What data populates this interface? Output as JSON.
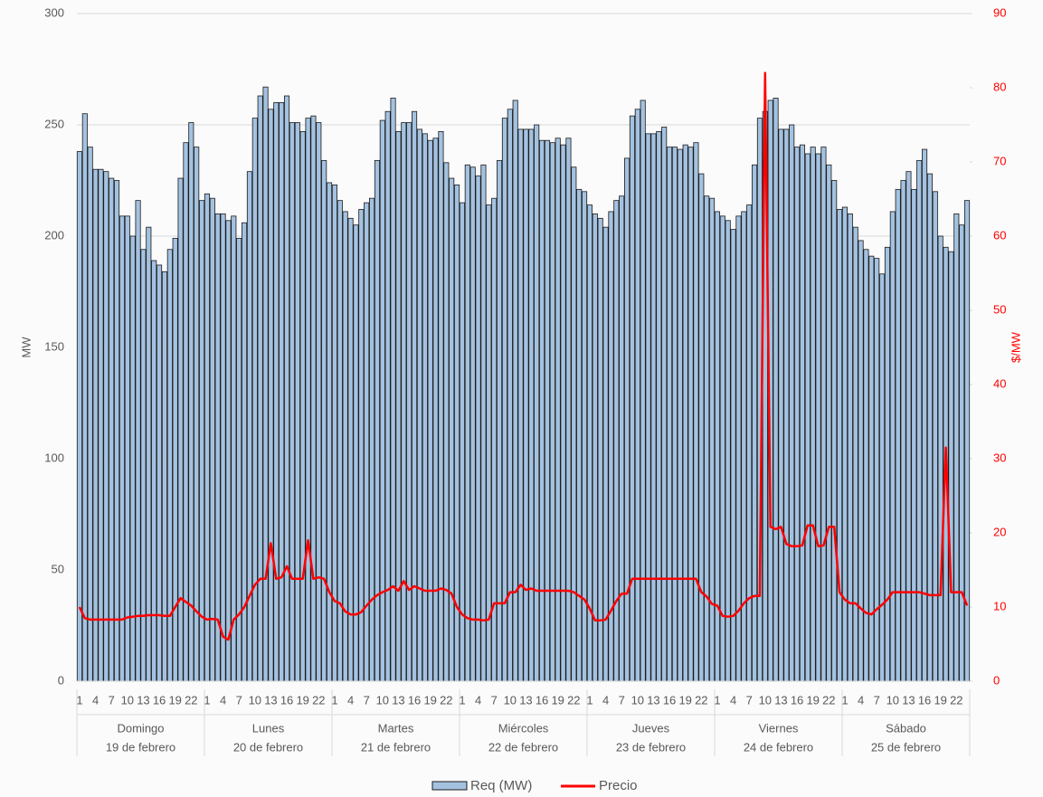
{
  "chart_data": {
    "type": "bar-line",
    "y_label": "MW",
    "y2_label": "$/MW",
    "ylim": [
      0,
      300
    ],
    "yticks": [
      0,
      50,
      100,
      150,
      200,
      250,
      300
    ],
    "y2lim": [
      0,
      90
    ],
    "y2ticks": [
      0,
      10,
      20,
      30,
      40,
      50,
      60,
      70,
      80,
      90
    ],
    "grid": true,
    "legend": "bottom",
    "groups": [
      {
        "name": "Domingo",
        "date": "19 de febrero"
      },
      {
        "name": "Lunes",
        "date": "20 de febrero"
      },
      {
        "name": "Martes",
        "date": "21 de febrero"
      },
      {
        "name": "Miércoles",
        "date": "22 de febrero"
      },
      {
        "name": "Jueves",
        "date": "23 de febrero"
      },
      {
        "name": "Viernes",
        "date": "24 de febrero"
      },
      {
        "name": "Sábado",
        "date": "25 de febrero"
      }
    ],
    "categories": [
      "1",
      null,
      null,
      "4",
      null,
      null,
      "7",
      null,
      null,
      "10",
      null,
      null,
      "13",
      null,
      null,
      "16",
      null,
      null,
      "19",
      null,
      null,
      "22",
      null,
      null,
      "1",
      null,
      null,
      "4",
      null,
      null,
      "7",
      null,
      null,
      "10",
      null,
      null,
      "13",
      null,
      null,
      "16",
      null,
      null,
      "19",
      null,
      null,
      "22",
      null,
      null,
      "1",
      null,
      null,
      "4",
      null,
      null,
      "7",
      null,
      null,
      "10",
      null,
      null,
      "13",
      null,
      null,
      "16",
      null,
      null,
      "19",
      null,
      null,
      "22",
      null,
      null,
      "1",
      null,
      null,
      "4",
      null,
      null,
      "7",
      null,
      null,
      "10",
      null,
      null,
      "13",
      null,
      null,
      "16",
      null,
      null,
      "19",
      null,
      null,
      "22",
      null,
      null,
      "1",
      null,
      null,
      "4",
      null,
      null,
      "7",
      null,
      null,
      "10",
      null,
      null,
      "13",
      null,
      null,
      "16",
      null,
      null,
      "19",
      null,
      null,
      "22",
      null,
      null,
      "1",
      null,
      null,
      "4",
      null,
      null,
      "7",
      null,
      null,
      "10",
      null,
      null,
      "13",
      null,
      null,
      "16",
      null,
      null,
      "19",
      null,
      null,
      "22",
      null,
      null,
      "1",
      null,
      null,
      "4",
      null,
      null,
      "7",
      null,
      null,
      "10",
      null,
      null,
      "13",
      null,
      null,
      "16",
      null,
      null,
      "19",
      null,
      null,
      "22",
      null,
      null
    ],
    "series": [
      {
        "name": "Req (MW)",
        "type": "bar",
        "color": "#a4c2e0",
        "values": [
          238,
          255,
          240,
          230,
          230,
          229,
          226,
          225,
          209,
          209,
          200,
          216,
          194,
          204,
          189,
          187,
          184,
          194,
          199,
          226,
          242,
          251,
          240,
          216,
          219,
          217,
          210,
          210,
          207,
          209,
          199,
          206,
          229,
          253,
          263,
          267,
          257,
          260,
          260,
          263,
          251,
          251,
          247,
          253,
          254,
          251,
          234,
          224,
          223,
          216,
          211,
          208,
          205,
          212,
          215,
          217,
          234,
          252,
          256,
          262,
          247,
          251,
          251,
          256,
          248,
          246,
          243,
          244,
          247,
          233,
          226,
          223,
          215,
          232,
          231,
          227,
          232,
          214,
          217,
          234,
          253,
          257,
          261,
          248,
          248,
          248,
          250,
          243,
          243,
          242,
          244,
          241,
          244,
          231,
          221,
          220,
          214,
          210,
          208,
          204,
          211,
          216,
          218,
          235,
          254,
          257,
          261,
          246,
          246,
          247,
          249,
          240,
          240,
          239,
          241,
          240,
          242,
          228,
          218,
          217,
          211,
          209,
          207,
          203,
          209,
          211,
          214,
          232,
          253,
          256,
          261,
          262,
          248,
          248,
          250,
          240,
          241,
          237,
          240,
          237,
          240,
          232,
          225,
          212,
          213,
          210,
          204,
          198,
          194,
          191,
          190,
          183,
          195,
          211,
          221,
          225,
          229,
          221,
          234,
          239,
          228,
          220,
          200,
          195,
          193,
          210,
          205,
          216
        ]
      },
      {
        "name": "Precio",
        "type": "line",
        "axis": "y2",
        "color": "#ff0000",
        "values": [
          10,
          8.5,
          8.3,
          8.3,
          8.3,
          8.3,
          8.3,
          8.3,
          8.3,
          8.6,
          8.7,
          8.8,
          8.8,
          8.9,
          8.9,
          8.9,
          8.8,
          8.8,
          10,
          11.2,
          10.7,
          10.2,
          9.4,
          8.7,
          8.3,
          8.4,
          8.3,
          6,
          5.6,
          8.3,
          9,
          10,
          11.5,
          13,
          13.8,
          13.8,
          18.6,
          13.8,
          14,
          15.5,
          13.8,
          13.8,
          13.8,
          19,
          13.8,
          14,
          13.8,
          12,
          10.8,
          10.5,
          9.4,
          9,
          9,
          9.3,
          10.2,
          11,
          11.6,
          12,
          12.3,
          12.8,
          12.2,
          13.5,
          12.3,
          12.8,
          12.5,
          12.2,
          12.2,
          12.2,
          12.5,
          12.3,
          11.8,
          10,
          9,
          8.5,
          8.3,
          8.3,
          8.2,
          8.3,
          10.5,
          10.5,
          10.5,
          12,
          12,
          13,
          12.3,
          12.5,
          12.2,
          12.2,
          12.2,
          12.2,
          12.2,
          12.2,
          12.2,
          12,
          11.5,
          11,
          9.8,
          8.2,
          8.2,
          8.3,
          9.5,
          10.8,
          11.8,
          11.8,
          13.8,
          13.8,
          13.8,
          13.8,
          13.8,
          13.8,
          13.8,
          13.8,
          13.8,
          13.8,
          13.8,
          13.8,
          13.8,
          12,
          11.4,
          10.4,
          10.2,
          8.8,
          8.7,
          8.8,
          9.5,
          10.5,
          11.2,
          11.5,
          11.5,
          82,
          20.8,
          20.5,
          20.8,
          18.5,
          18.2,
          18.2,
          18.3,
          21,
          21,
          18.2,
          18.3,
          20.8,
          20.8,
          12,
          11,
          10.5,
          10.5,
          9.8,
          9.2,
          9,
          9.7,
          10.3,
          11,
          12,
          12,
          12,
          12,
          12,
          12,
          11.8,
          11.6,
          11.6,
          11.6,
          31.5,
          12,
          12,
          12,
          10.2
        ]
      }
    ]
  }
}
